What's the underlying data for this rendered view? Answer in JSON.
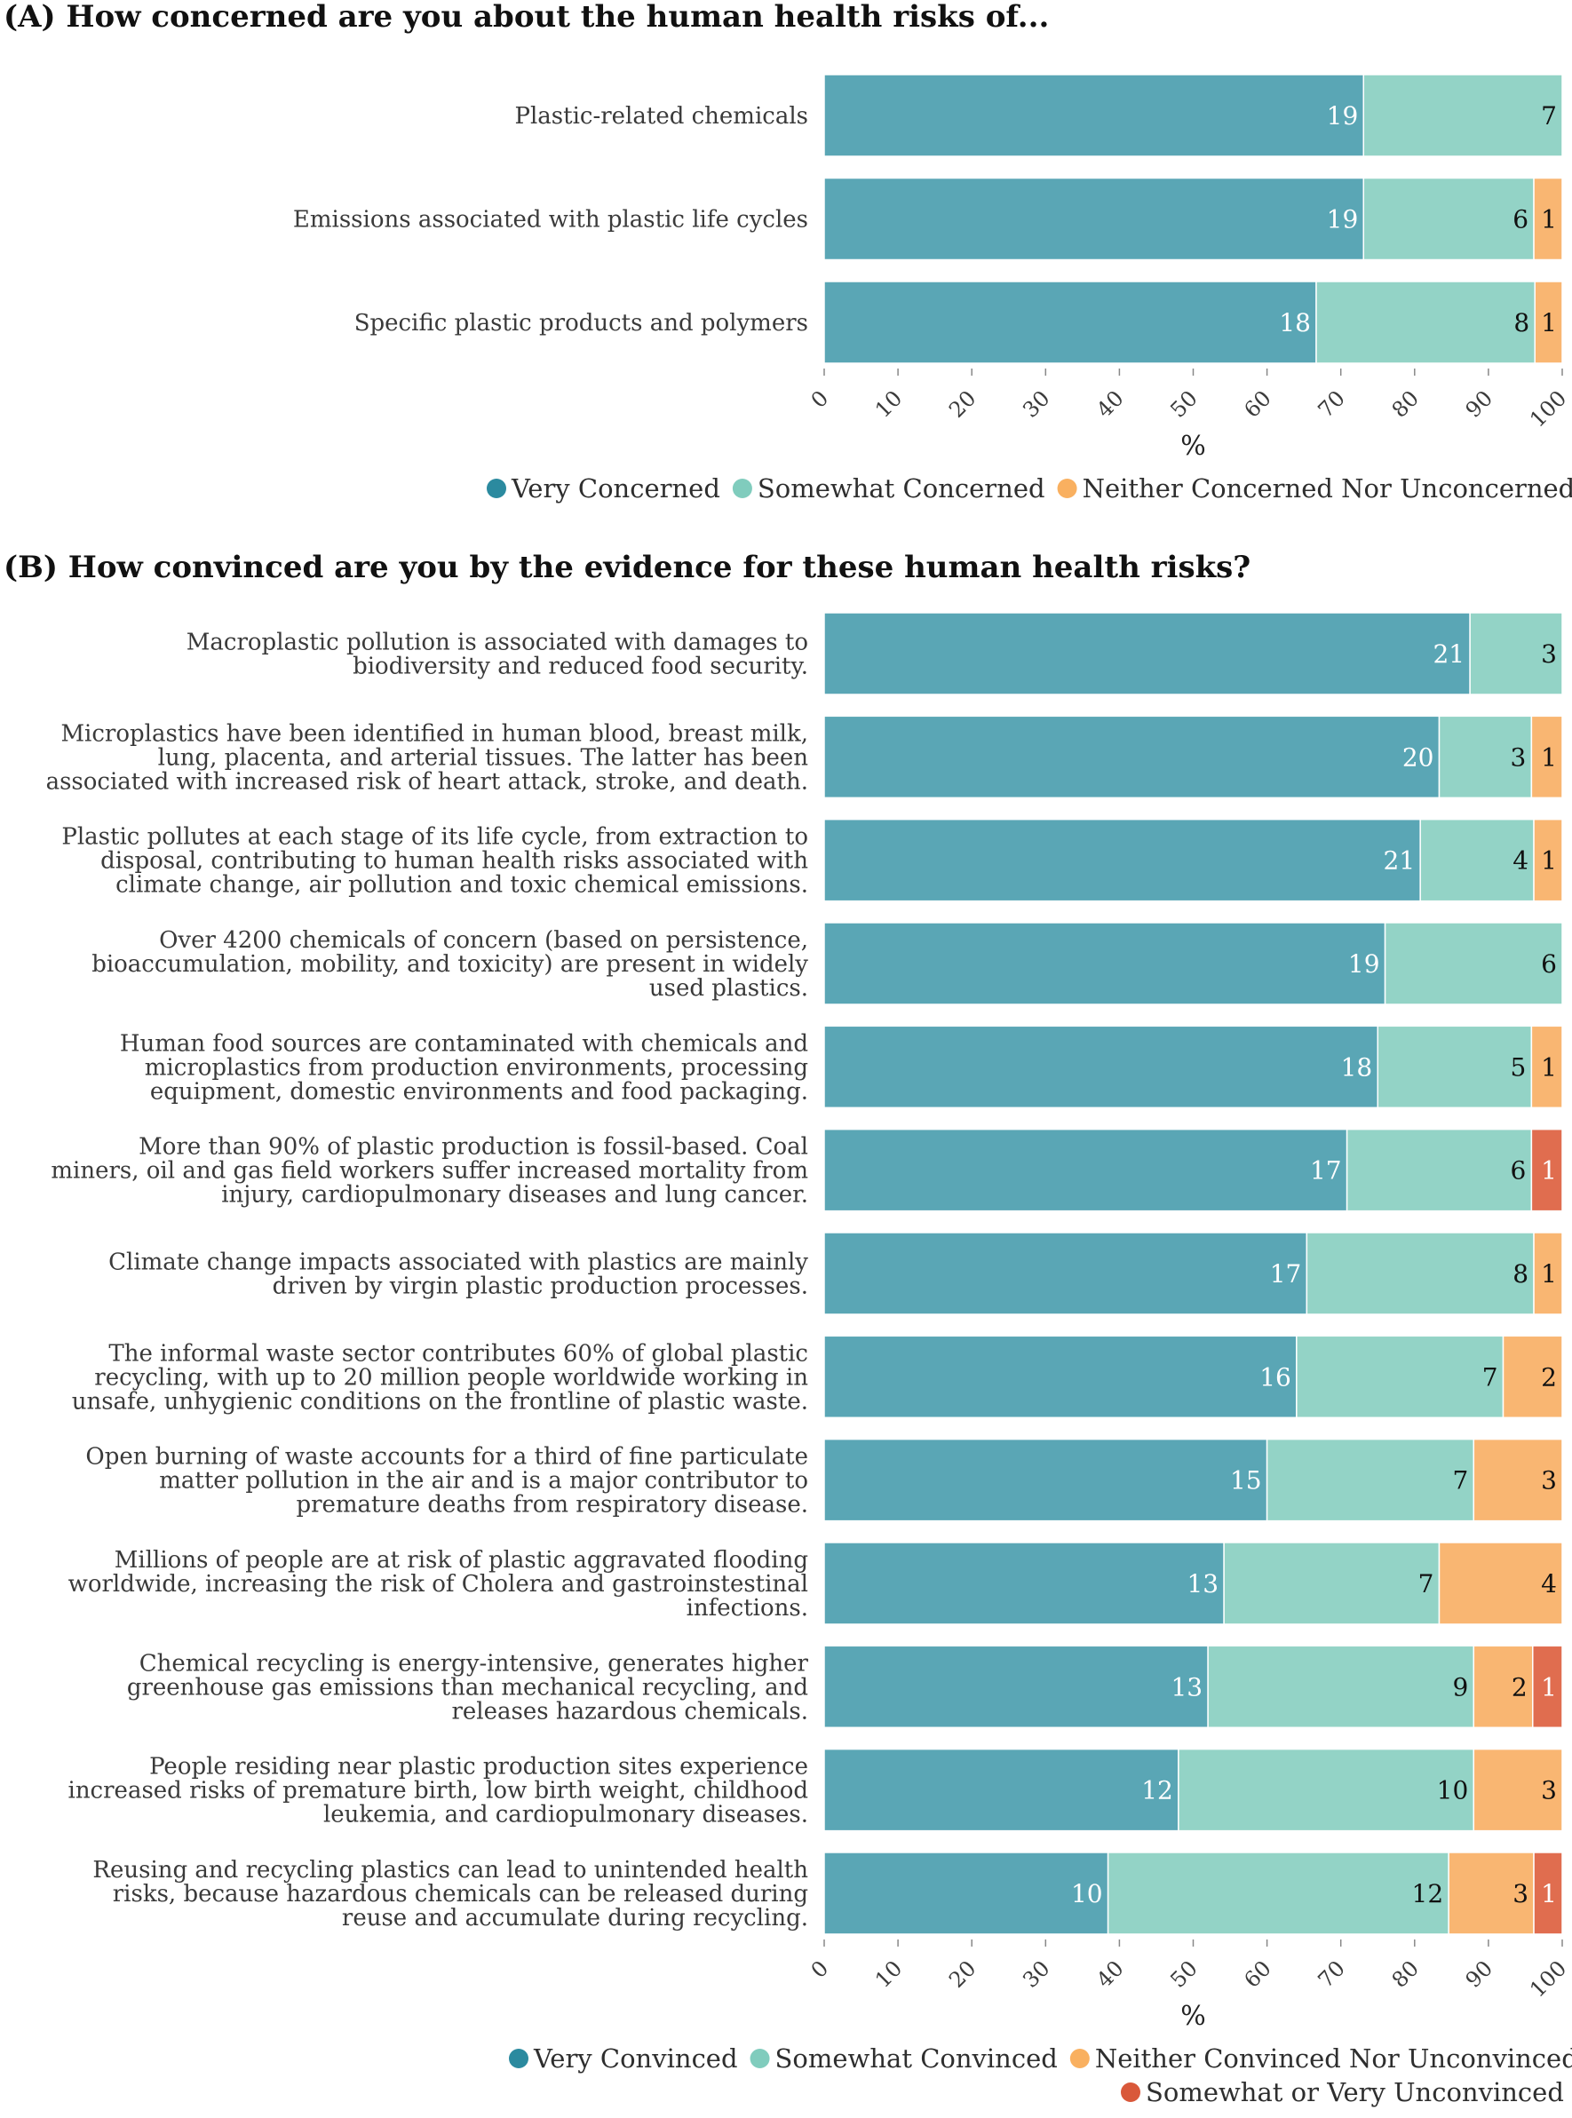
{
  "chart_data": [
    {
      "type": "bar",
      "orientation": "horizontal",
      "stacked": true,
      "title": "(A) How concerned are you about the human health risks of...",
      "xlabel": "%",
      "ylabel": "",
      "xlim": [
        0,
        100
      ],
      "xticks": [
        "0",
        "10",
        "20",
        "30",
        "40",
        "50",
        "60",
        "70",
        "80",
        "90",
        "100"
      ],
      "grid": false,
      "legend_position": "bottom",
      "categories": [
        "Plastic-related chemicals",
        "Emissions associated with plastic life cycles",
        "Specific plastic products and polymers"
      ],
      "series": [
        {
          "name": "Very Concerned",
          "color": "#5aa6b5",
          "legend_color": "#2b8a9f",
          "counts": [
            19,
            19,
            18
          ]
        },
        {
          "name": "Somewhat Concerned",
          "color": "#93d3c6",
          "legend_color": "#80ccbd",
          "counts": [
            7,
            6,
            8
          ]
        },
        {
          "name": "Neither Concerned Nor Unconcerned",
          "color": "#f9b672",
          "legend_color": "#f9b060",
          "counts": [
            null,
            1,
            1
          ]
        }
      ]
    },
    {
      "type": "bar",
      "orientation": "horizontal",
      "stacked": true,
      "title": "(B) How convinced are you by the evidence for these human health risks?",
      "xlabel": "%",
      "ylabel": "",
      "xlim": [
        0,
        100
      ],
      "xticks": [
        "0",
        "10",
        "20",
        "30",
        "40",
        "50",
        "60",
        "70",
        "80",
        "90",
        "100"
      ],
      "grid": false,
      "legend_position": "bottom",
      "categories": [
        [
          "Macroplastic pollution is associated with damages to",
          "biodiversity and reduced food security."
        ],
        [
          "Microplastics have been identified in human blood, breast milk,",
          "lung, placenta, and arterial tissues. The latter has been",
          "associated with increased risk of heart attack, stroke, and death."
        ],
        [
          "Plastic pollutes at each stage of its life cycle, from extraction to",
          "disposal, contributing to human health risks associated with",
          "climate change, air pollution and toxic chemical emissions."
        ],
        [
          "Over 4200 chemicals of concern (based on persistence,",
          "bioaccumulation, mobility, and toxicity) are present in widely",
          "used plastics."
        ],
        [
          "Human food sources are contaminated with chemicals and",
          "microplastics from production environments, processing",
          "equipment, domestic environments and food packaging."
        ],
        [
          "More than 90% of plastic production is fossil-based. Coal",
          "miners, oil and gas field workers suffer increased mortality from",
          "injury, cardiopulmonary diseases and lung cancer."
        ],
        [
          "Climate change impacts associated with plastics are mainly",
          "driven by virgin plastic production processes."
        ],
        [
          "The informal waste sector contributes 60% of global plastic",
          "recycling, with up to 20 million people worldwide working in",
          "unsafe, unhygienic conditions on the frontline of plastic waste."
        ],
        [
          "Open burning of waste accounts for a third of fine particulate",
          "matter pollution in the air and is a major contributor to",
          "premature deaths from respiratory disease."
        ],
        [
          "Millions of people are at risk of plastic aggravated flooding",
          "worldwide, increasing the risk of Cholera and gastroinstestinal",
          "infections."
        ],
        [
          "Chemical recycling is energy-intensive, generates higher",
          "greenhouse gas emissions than mechanical recycling, and",
          "releases hazardous chemicals."
        ],
        [
          "People residing near plastic production sites experience",
          "increased risks of premature birth, low birth weight, childhood",
          "leukemia, and cardiopulmonary diseases."
        ],
        [
          "Reusing and recycling plastics can lead to unintended health",
          "risks, because hazardous chemicals can be released during",
          "reuse and accumulate during recycling."
        ]
      ],
      "series": [
        {
          "name": "Very Convinced",
          "color": "#5aa6b5",
          "legend_color": "#2b8a9f",
          "counts": [
            21,
            20,
            21,
            19,
            18,
            17,
            17,
            16,
            15,
            13,
            13,
            12,
            10
          ]
        },
        {
          "name": "Somewhat Convinced",
          "color": "#93d3c6",
          "legend_color": "#80ccbd",
          "counts": [
            3,
            3,
            4,
            6,
            5,
            6,
            8,
            7,
            7,
            7,
            9,
            10,
            12
          ]
        },
        {
          "name": "Neither Convinced Nor Unconvinced",
          "color": "#f9b672",
          "legend_color": "#f9b060",
          "counts": [
            null,
            1,
            1,
            null,
            1,
            null,
            1,
            2,
            3,
            4,
            2,
            3,
            3
          ]
        },
        {
          "name": "Somewhat or Very Unconvinced",
          "color": "#e06d4f",
          "legend_color": "#d9583a",
          "counts": [
            null,
            null,
            null,
            null,
            null,
            1,
            null,
            null,
            null,
            null,
            1,
            null,
            1
          ]
        }
      ]
    }
  ]
}
